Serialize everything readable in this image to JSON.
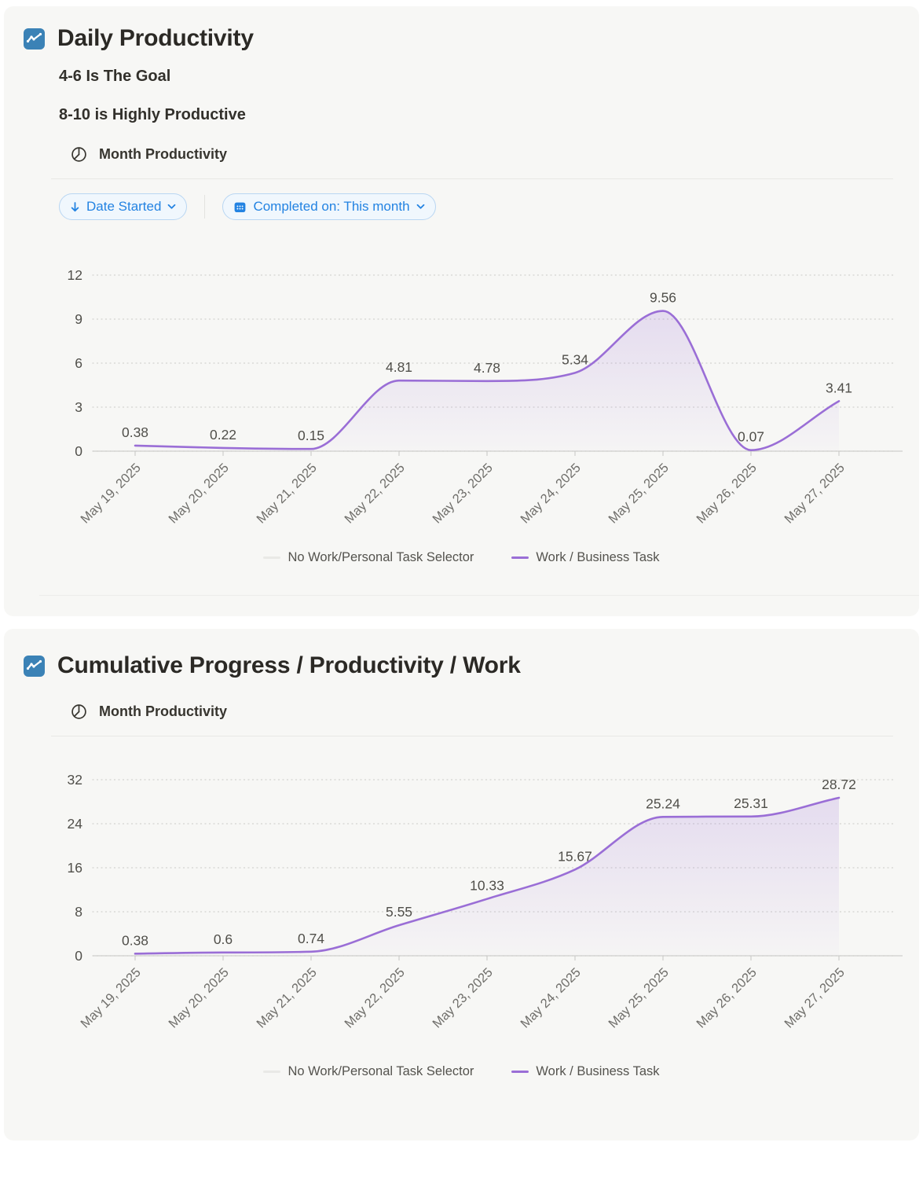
{
  "colors": {
    "card_bg": "#f7f7f5",
    "page_bg": "#ffffff",
    "accent_blue": "#2383e2",
    "title_icon_blue": "#3b82b6",
    "line_purple": "#9a6ed6",
    "grid_gray": "#d2d2cf",
    "axis_gray": "#c6c6c3",
    "label_gray": "#504f4a",
    "xlabel_gray": "#6f6e6a"
  },
  "card1": {
    "title": "Daily Productivity",
    "goal1": "4-6 Is The Goal",
    "goal2": "8-10 is Highly Productive",
    "view_label": "Month Productivity",
    "sort_chip": "Date Started",
    "filter_chip": "Completed on: This month"
  },
  "card2": {
    "title": "Cumulative Progress / Productivity / Work",
    "view_label": "Month Productivity"
  },
  "chart_data": [
    {
      "type": "area",
      "title": "Daily Productivity",
      "x": [
        "May 19, 2025",
        "May 20, 2025",
        "May 21, 2025",
        "May 22, 2025",
        "May 23, 2025",
        "May 24, 2025",
        "May 25, 2025",
        "May 26, 2025",
        "May 27, 2025"
      ],
      "series": [
        {
          "name": "No Work/Personal Task Selector",
          "color": "#e9e9e6",
          "values": []
        },
        {
          "name": "Work / Business Task",
          "color": "#9a6ed6",
          "values": [
            0.38,
            0.22,
            0.15,
            4.81,
            4.78,
            5.34,
            9.56,
            0.07,
            3.41
          ]
        }
      ],
      "data_labels": [
        "0.38",
        "0.22",
        "0.15",
        "4.81",
        "4.78",
        "5.34",
        "9.56",
        "0.07",
        "3.41"
      ],
      "ylim": [
        0,
        12
      ],
      "yticks": [
        0,
        3,
        6,
        9,
        12
      ],
      "grid": "dotted-horizontal",
      "legend_position": "bottom"
    },
    {
      "type": "area",
      "title": "Cumulative Progress / Productivity / Work",
      "x": [
        "May 19, 2025",
        "May 20, 2025",
        "May 21, 2025",
        "May 22, 2025",
        "May 23, 2025",
        "May 24, 2025",
        "May 25, 2025",
        "May 26, 2025",
        "May 27, 2025"
      ],
      "series": [
        {
          "name": "No Work/Personal Task Selector",
          "color": "#e9e9e6",
          "values": []
        },
        {
          "name": "Work / Business Task",
          "color": "#9a6ed6",
          "values": [
            0.38,
            0.6,
            0.74,
            5.55,
            10.33,
            15.67,
            25.24,
            25.31,
            28.72
          ]
        }
      ],
      "data_labels": [
        "0.38",
        "0.6",
        "0.74",
        "5.55",
        "10.33",
        "15.67",
        "25.24",
        "25.31",
        "28.72"
      ],
      "ylim": [
        0,
        32
      ],
      "yticks": [
        0,
        8,
        16,
        24,
        32
      ],
      "grid": "dotted-horizontal",
      "legend_position": "bottom"
    }
  ]
}
